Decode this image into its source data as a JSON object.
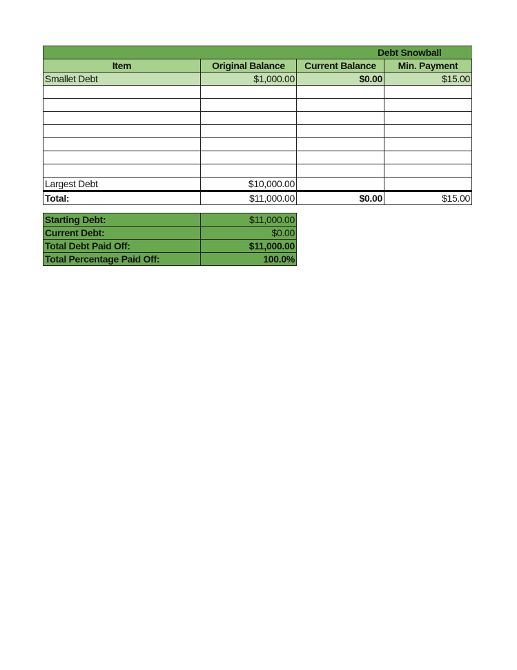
{
  "sheet": {
    "title": "Debt Snowball",
    "columns": [
      "Item",
      "Original Balance",
      "Current Balance",
      "Min. Payment"
    ],
    "rows": [
      {
        "item": "Smallet Debt",
        "original": "$1,000.00",
        "current": "$0.00",
        "min": "$15.00"
      },
      {
        "item": "",
        "original": "",
        "current": "",
        "min": ""
      },
      {
        "item": "",
        "original": "",
        "current": "",
        "min": ""
      },
      {
        "item": "",
        "original": "",
        "current": "",
        "min": ""
      },
      {
        "item": "",
        "original": "",
        "current": "",
        "min": ""
      },
      {
        "item": "",
        "original": "",
        "current": "",
        "min": ""
      },
      {
        "item": "",
        "original": "",
        "current": "",
        "min": ""
      },
      {
        "item": "",
        "original": "",
        "current": "",
        "min": ""
      },
      {
        "item": "Largest Debt",
        "original": "$10,000.00",
        "current": "",
        "min": ""
      }
    ],
    "total": {
      "label": "Total:",
      "original": "$11,000.00",
      "current": "$0.00",
      "min": "$15.00"
    }
  },
  "summary": [
    {
      "label": "Starting Debt:",
      "value": "$11,000.00"
    },
    {
      "label": "Current Debt:",
      "value": "$0.00"
    },
    {
      "label": "Total Debt Paid Off:",
      "value": "$11,000.00"
    },
    {
      "label": "Total Percentage Paid Off:",
      "value": "100.0%"
    }
  ],
  "colors": {
    "title_bg": "#6aa84f",
    "header_bg": "#a9d18e",
    "first_row_bg": "#c5e0b3",
    "summary_bg": "#6aa84f"
  }
}
